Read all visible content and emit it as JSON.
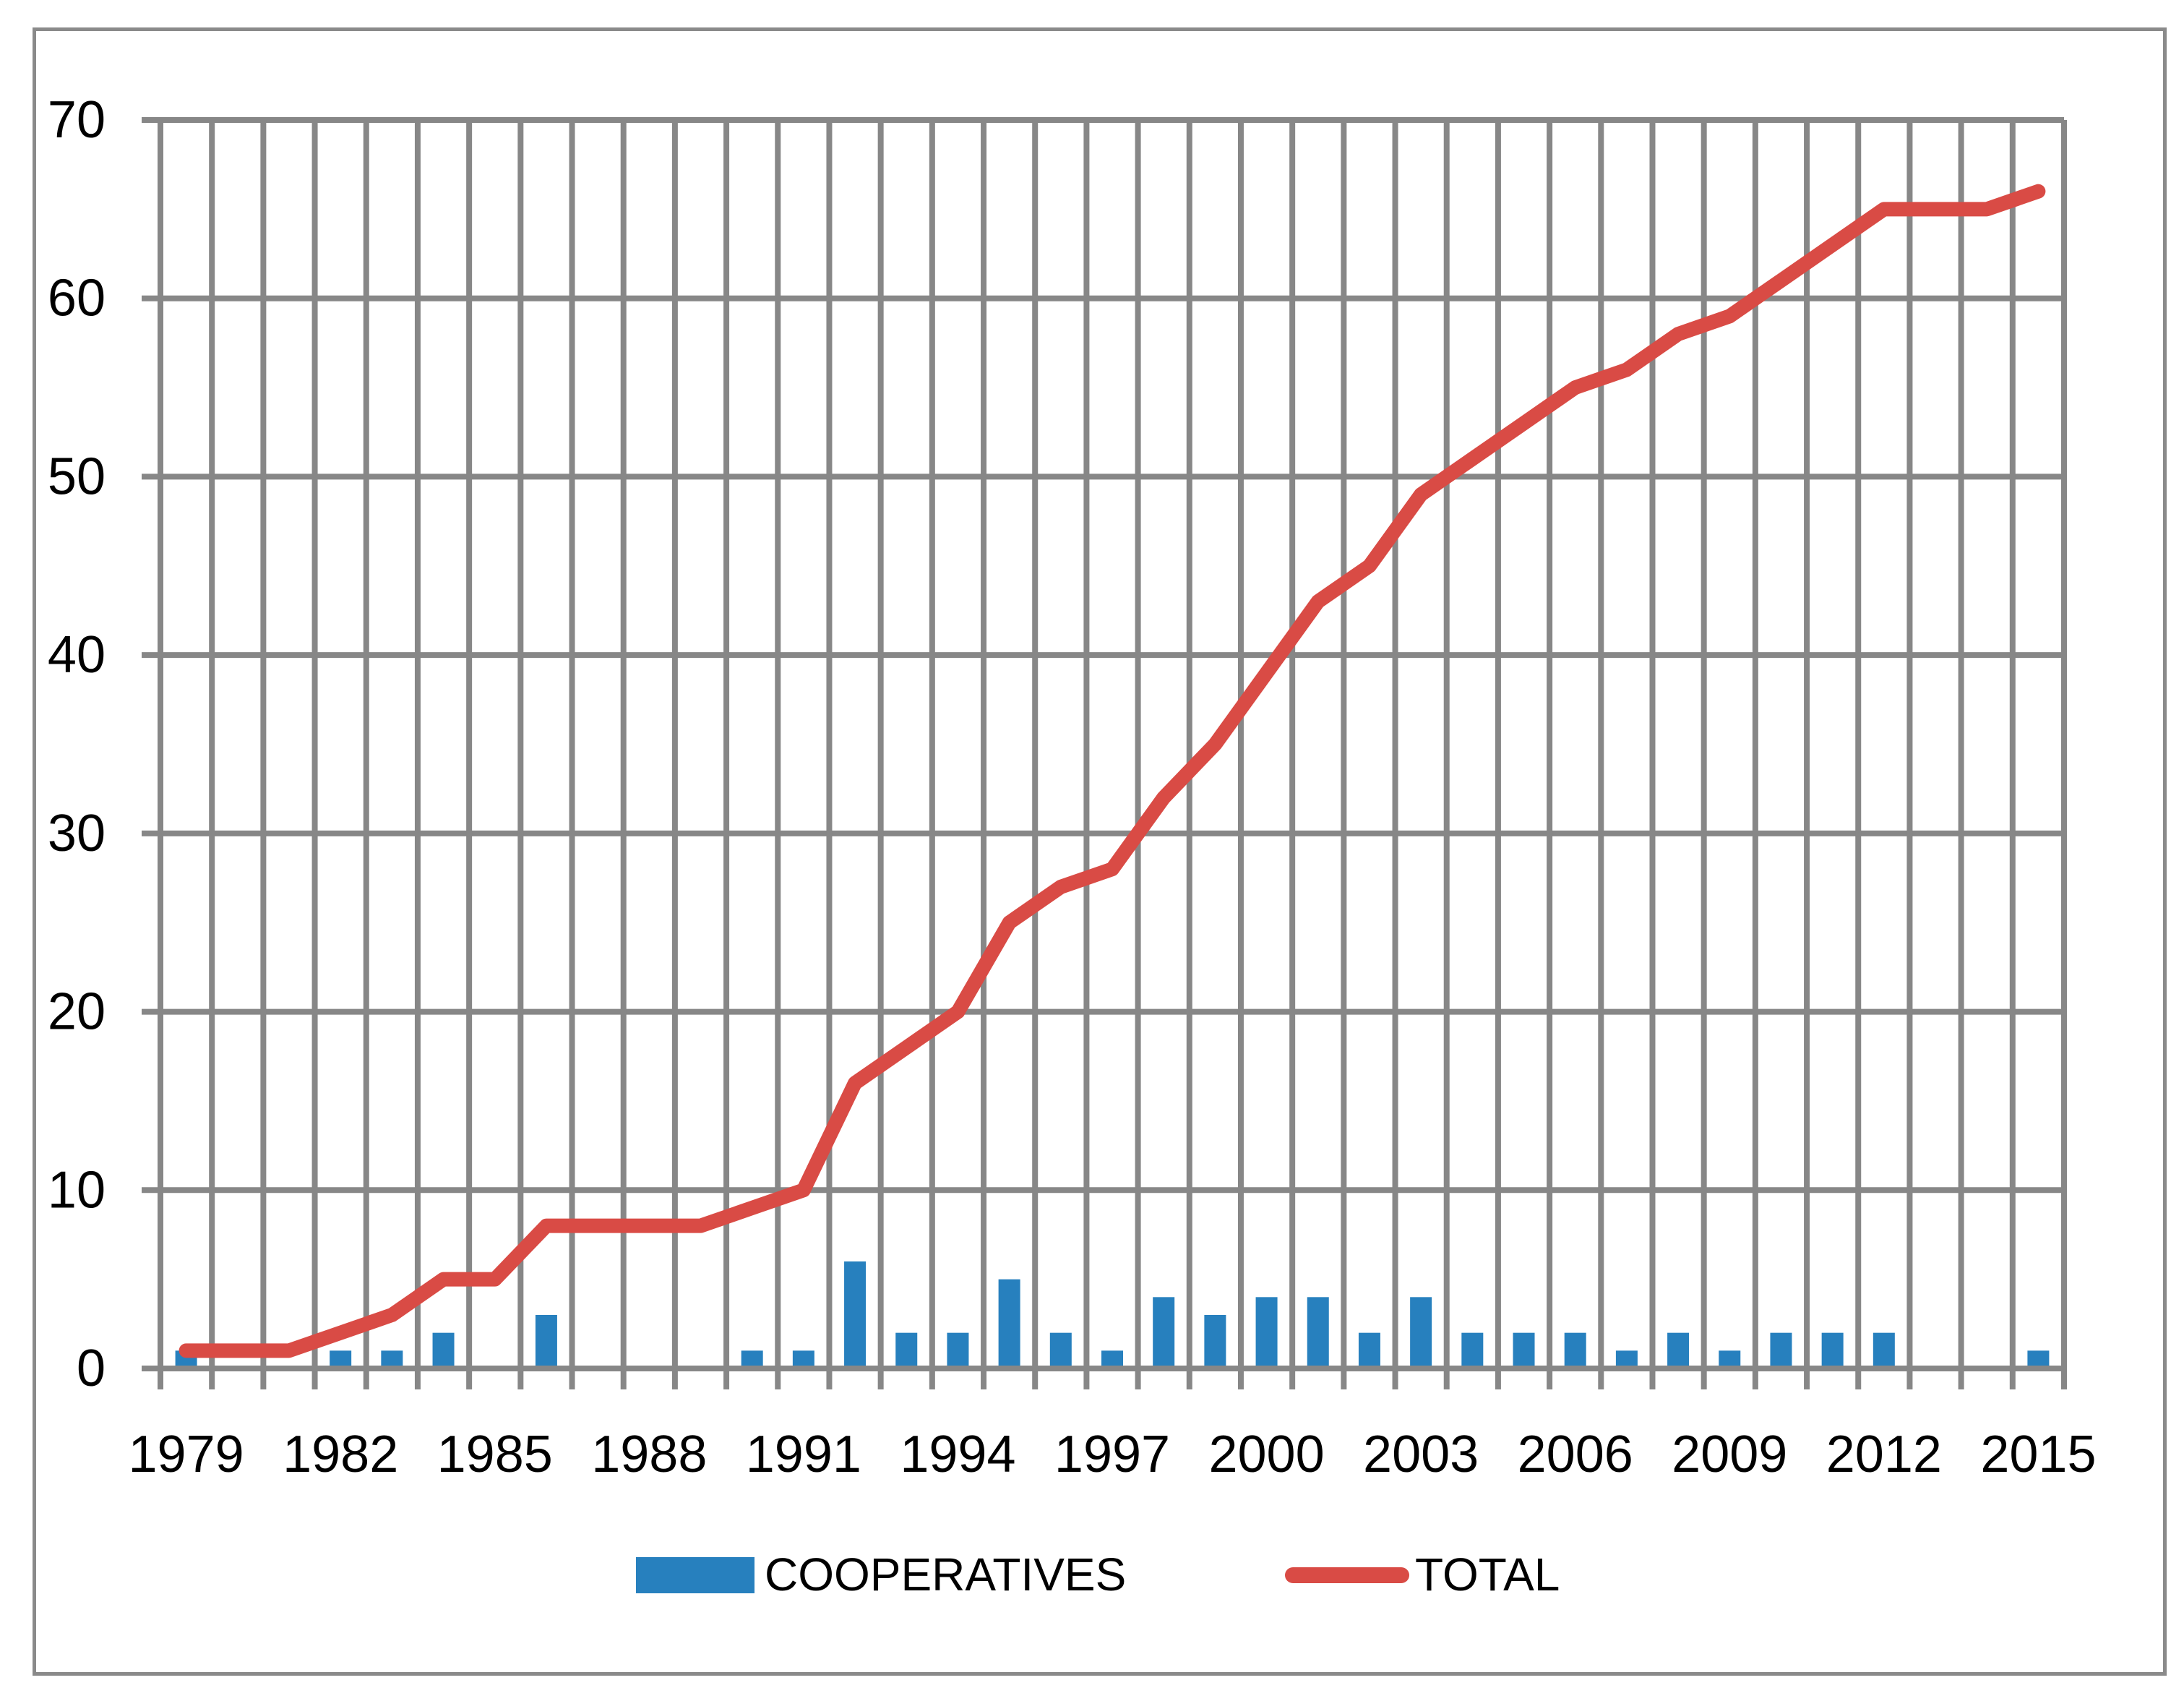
{
  "chart_data": {
    "type": "bar+line",
    "categories": [
      1979,
      1980,
      1981,
      1982,
      1983,
      1984,
      1985,
      1986,
      1987,
      1988,
      1989,
      1990,
      1991,
      1992,
      1993,
      1994,
      1995,
      1996,
      1997,
      1998,
      1999,
      2000,
      2001,
      2002,
      2003,
      2004,
      2005,
      2006,
      2007,
      2008,
      2009,
      2010,
      2011,
      2012,
      2013,
      2014,
      2015
    ],
    "series": [
      {
        "name": "COOPERATIVES",
        "type": "bar",
        "values": [
          1,
          0,
          0,
          1,
          1,
          2,
          0,
          3,
          0,
          0,
          0,
          1,
          1,
          6,
          2,
          2,
          5,
          2,
          1,
          4,
          3,
          4,
          4,
          2,
          4,
          2,
          2,
          2,
          1,
          2,
          1,
          2,
          2,
          2,
          0,
          0,
          1
        ]
      },
      {
        "name": "TOTAL",
        "type": "line",
        "values": [
          1,
          1,
          1,
          2,
          3,
          5,
          5,
          8,
          8,
          8,
          8,
          9,
          10,
          16,
          18,
          20,
          25,
          27,
          28,
          32,
          35,
          39,
          43,
          45,
          49,
          51,
          53,
          55,
          56,
          58,
          59,
          61,
          63,
          65,
          65,
          65,
          66
        ]
      }
    ],
    "ylim": [
      0,
      70
    ],
    "ytick_step": 10,
    "x_label_every": 3,
    "x_labels_shown": [
      1979,
      1982,
      1985,
      1988,
      1991,
      1994,
      1997,
      2000,
      2003,
      2006,
      2009,
      2012,
      2015
    ],
    "grid": "both",
    "legend_position": "bottom"
  },
  "legend": {
    "cooperatives_label": "COOPERATIVES",
    "total_label": "TOTAL"
  },
  "colors": {
    "bar": "#2780be",
    "line": "#d94b45",
    "grid": "#878787",
    "frame": "#8a8a8a",
    "text": "#000000",
    "background": "#ffffff"
  }
}
